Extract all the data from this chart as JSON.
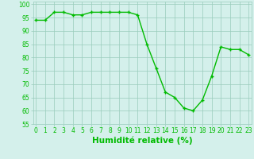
{
  "x": [
    0,
    1,
    2,
    3,
    4,
    5,
    6,
    7,
    8,
    9,
    10,
    11,
    12,
    13,
    14,
    15,
    16,
    17,
    18,
    19,
    20,
    21,
    22,
    23
  ],
  "y": [
    94,
    94,
    97,
    97,
    96,
    96,
    97,
    97,
    97,
    97,
    97,
    96,
    85,
    76,
    67,
    65,
    61,
    60,
    64,
    73,
    84,
    83,
    83,
    81
  ],
  "line_color": "#00bb00",
  "marker": "+",
  "marker_size": 3,
  "marker_lw": 1.0,
  "bg_color": "#d4f0eb",
  "grid_color": "#99ccbb",
  "xlabel": "Humidité relative (%)",
  "xlabel_color": "#00bb00",
  "ylim": [
    55,
    101
  ],
  "xlim": [
    -0.3,
    23.3
  ],
  "yticks": [
    55,
    60,
    65,
    70,
    75,
    80,
    85,
    90,
    95,
    100
  ],
  "xticks": [
    0,
    1,
    2,
    3,
    4,
    5,
    6,
    7,
    8,
    9,
    10,
    11,
    12,
    13,
    14,
    15,
    16,
    17,
    18,
    19,
    20,
    21,
    22,
    23
  ],
  "tick_color": "#00bb00",
  "tick_fontsize": 5.5,
  "xlabel_fontsize": 7.5,
  "linewidth": 1.0
}
